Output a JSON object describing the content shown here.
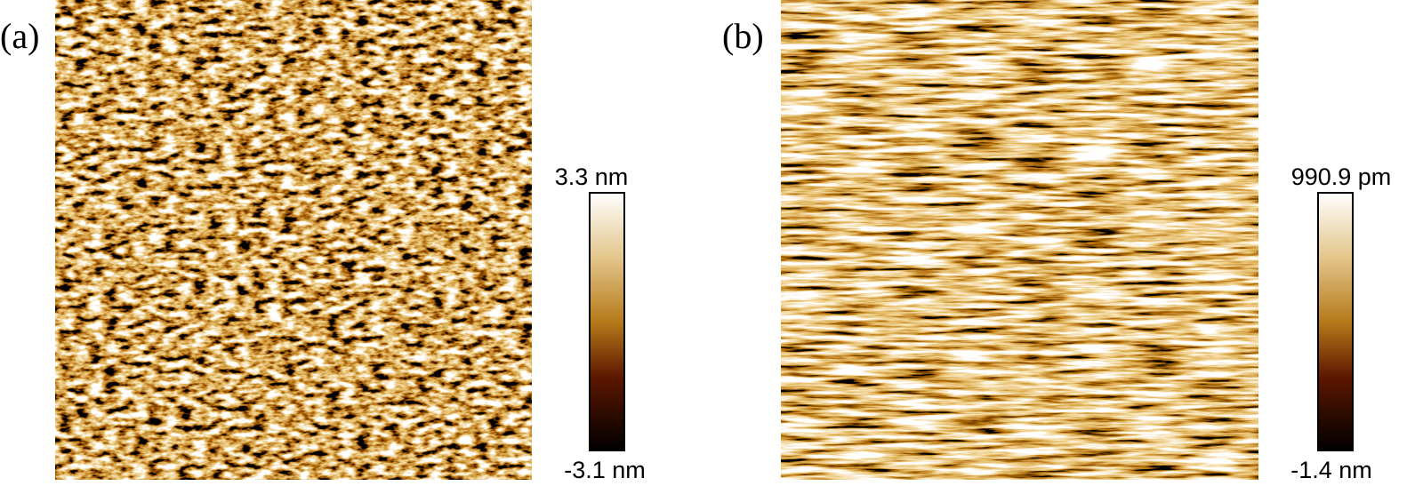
{
  "panels": [
    {
      "label": "(a)",
      "colorbar": {
        "max_label": "3.3 nm",
        "min_label": "-3.1 nm"
      }
    },
    {
      "label": "(b)",
      "colorbar": {
        "max_label": "990.9 pm",
        "min_label": "-1.4 nm"
      }
    }
  ]
}
